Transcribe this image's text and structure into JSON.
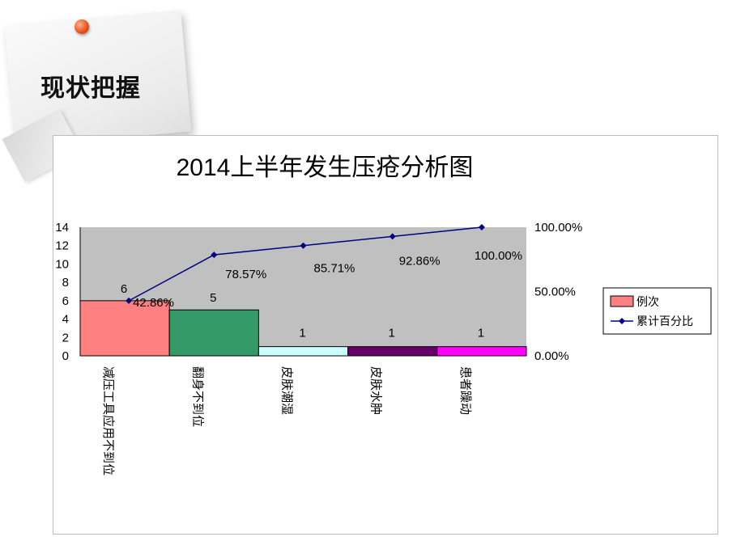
{
  "page": {
    "heading": "现状把握"
  },
  "chart_data": {
    "type": "bar",
    "title": "2014上半年发生压疮分析图",
    "categories": [
      "减压工具应用不到位",
      "翻身不到位",
      "皮肤潮湿",
      "皮肤水肿",
      "患者躁动"
    ],
    "series": [
      {
        "name": "例次",
        "type": "bar",
        "axis": "left",
        "values": [
          6,
          5,
          1,
          1,
          1
        ],
        "value_labels": [
          "6",
          "5",
          "1",
          "1",
          "1"
        ],
        "colors": [
          "#ff8080",
          "#339966",
          "#ccffff",
          "#660066",
          "#ff00ff"
        ]
      },
      {
        "name": "累计百分比",
        "type": "line",
        "axis": "right",
        "values": [
          42.86,
          78.57,
          85.71,
          92.86,
          100.0
        ],
        "value_labels": [
          "42.86%",
          "78.57%",
          "85.71%",
          "92.86%",
          "100.00%"
        ],
        "color": "#000080"
      }
    ],
    "y_left": {
      "min": 0,
      "max": 14,
      "ticks": [
        "0",
        "2",
        "4",
        "6",
        "8",
        "10",
        "12",
        "14"
      ]
    },
    "y_right": {
      "min": 0,
      "max": 100,
      "ticks": [
        "0.00%",
        "50.00%",
        "100.00%"
      ]
    },
    "plot_background": "#c0c0c0",
    "legend_position": "right"
  }
}
